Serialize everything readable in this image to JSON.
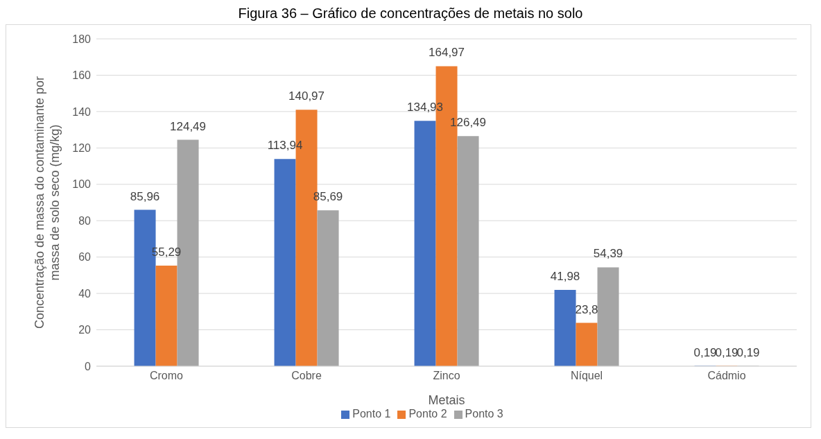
{
  "chart_data": {
    "type": "bar",
    "title": "Figura 36 – Gráfico de concentrações de metais no solo",
    "xlabel": "Metais",
    "ylabel": "Concentração de massa do contaminante por massa de solo seco  (mg/kg)",
    "categories": [
      "Cromo",
      "Cobre",
      "Zinco",
      "Níquel",
      "Cádmio"
    ],
    "series": [
      {
        "name": "Ponto 1",
        "color": "#4472c4",
        "values": [
          85.96,
          113.94,
          134.93,
          41.98,
          0.19
        ],
        "value_labels": [
          "85,96",
          "113,94",
          "134,93",
          "41,98",
          "0,19"
        ]
      },
      {
        "name": "Ponto 2",
        "color": "#ed7d31",
        "values": [
          55.29,
          140.97,
          164.97,
          23.8,
          0.19
        ],
        "value_labels": [
          "55,29",
          "140,97",
          "164,97",
          "23,8",
          "0,19"
        ]
      },
      {
        "name": "Ponto 3",
        "color": "#a5a5a5",
        "values": [
          124.49,
          85.69,
          126.49,
          54.39,
          0.19
        ],
        "value_labels": [
          "124,49",
          "85,69",
          "126,49",
          "54,39",
          "0,19"
        ]
      }
    ],
    "ylim": [
      0,
      180
    ],
    "yticks": [
      0,
      20,
      40,
      60,
      80,
      100,
      120,
      140,
      160,
      180
    ],
    "grid": "y",
    "legend": "bottom"
  }
}
